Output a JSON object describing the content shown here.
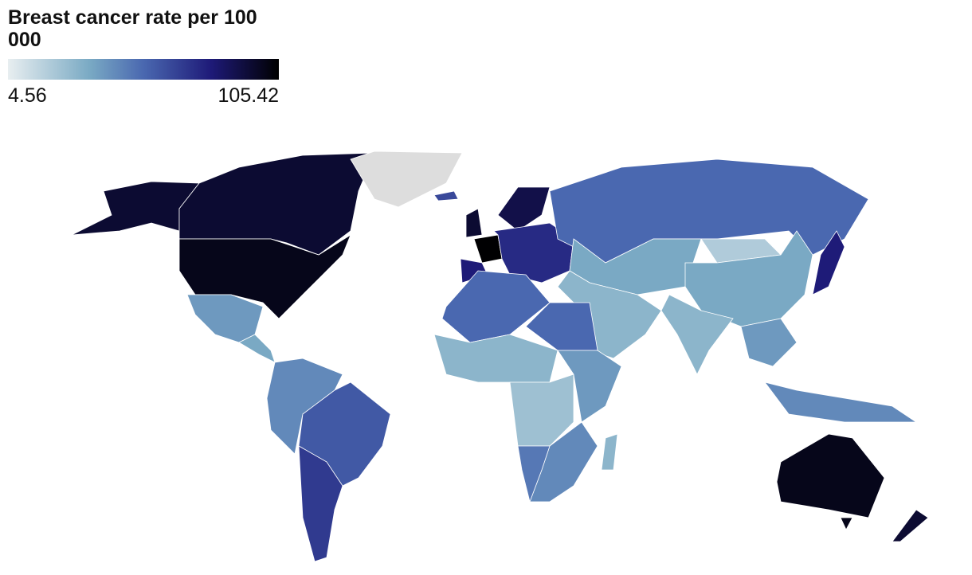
{
  "map": {
    "title": "Breast cancer rate per 100 000",
    "scale": {
      "min": 4.56,
      "max": 105.42
    },
    "values": [
      95,
      95,
      100,
      null,
      40,
      35,
      45,
      60,
      70,
      65,
      95,
      105,
      90,
      80,
      75,
      55,
      35,
      20,
      35,
      30,
      30,
      80,
      40,
      45,
      55,
      55,
      30,
      25,
      40,
      45,
      50,
      30,
      100,
      95,
      100
    ]
  }
}
